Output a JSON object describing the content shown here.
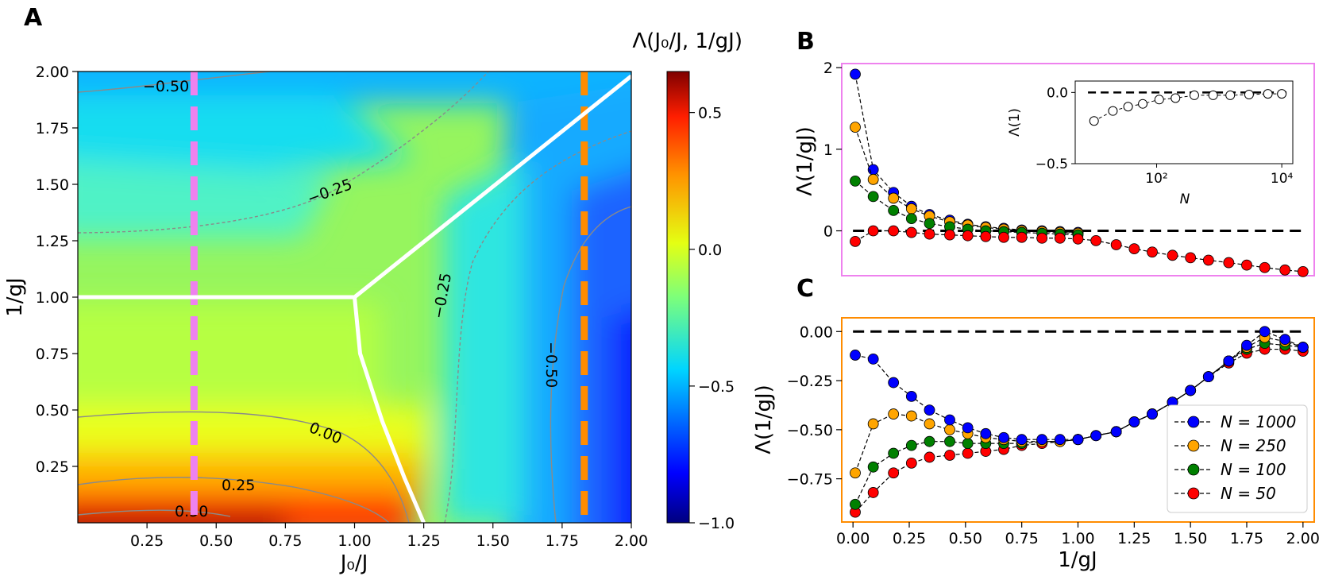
{
  "panels": {
    "a": {
      "letter": "A"
    },
    "b": {
      "letter": "B"
    },
    "c": {
      "letter": "C"
    }
  },
  "colors": {
    "pink": "#ee82ee",
    "orange": "#ff8c00",
    "blue": "#0000ff",
    "orange_marker": "#ffa500",
    "green": "#008000",
    "red": "#ff0000"
  },
  "chart_data": [
    {
      "id": "A",
      "type": "heatmap",
      "title": "Λ(J₀/J, 1/gJ)",
      "xlabel": "J₀/J",
      "ylabel": "1/gJ",
      "xlim": [
        0,
        2.0
      ],
      "ylim": [
        0,
        2.0
      ],
      "xticks": [
        "0.25",
        "0.50",
        "0.75",
        "1.00",
        "1.25",
        "1.50",
        "1.75",
        "2.00"
      ],
      "yticks": [
        "0.25",
        "0.50",
        "0.75",
        "1.00",
        "1.25",
        "1.50",
        "1.75",
        "2.00"
      ],
      "colorbar": {
        "range": [
          -1.0,
          0.65
        ],
        "ticks": [
          "0.5",
          "0.0",
          "−0.5",
          "−1.0"
        ],
        "colormap": "jet"
      },
      "contour_labels": [
        "−0.50",
        "−0.25",
        "−0.25",
        "0.00",
        "0.25",
        "0.50",
        "−0.50"
      ],
      "vertical_lines": [
        {
          "x": 0.42,
          "color": "#ee82ee"
        },
        {
          "x": 1.83,
          "color": "#ff8c00"
        }
      ],
      "phase_boundaries": [
        {
          "points": [
            [
              0.0,
              1.0
            ],
            [
              1.0,
              1.0
            ]
          ]
        },
        {
          "points": [
            [
              1.0,
              1.0
            ],
            [
              2.0,
              1.98
            ]
          ]
        },
        {
          "points": [
            [
              1.0,
              1.0
            ],
            [
              1.02,
              0.75
            ],
            [
              1.1,
              0.45
            ],
            [
              1.18,
              0.2
            ],
            [
              1.25,
              0.0
            ]
          ]
        }
      ]
    },
    {
      "id": "B",
      "type": "line",
      "xlabel": "",
      "ylabel": "Λ(1/gJ)",
      "xlim": [
        -0.05,
        2.05
      ],
      "ylim": [
        -0.55,
        2.05
      ],
      "yticks": [
        "0",
        "1",
        "2"
      ],
      "reference_line_y": 0,
      "series": [
        {
          "name": "N = 1000",
          "color": "#0000ff",
          "x": [
            0.01,
            0.09,
            0.18,
            0.26,
            0.34,
            0.43,
            0.51,
            0.59,
            0.67,
            0.75,
            0.84,
            0.92,
            1.0
          ],
          "values": [
            1.92,
            0.75,
            0.47,
            0.3,
            0.2,
            0.13,
            0.08,
            0.05,
            0.03,
            0.01,
            0.0,
            -0.01,
            -0.02
          ]
        },
        {
          "name": "N = 250",
          "color": "#ffa500",
          "x": [
            0.01,
            0.09,
            0.18,
            0.26,
            0.34,
            0.43,
            0.51,
            0.59,
            0.67,
            0.75,
            0.84,
            0.92,
            1.0
          ],
          "values": [
            1.27,
            0.63,
            0.4,
            0.27,
            0.18,
            0.11,
            0.07,
            0.04,
            0.02,
            0.0,
            -0.01,
            -0.02,
            -0.03
          ]
        },
        {
          "name": "N = 100",
          "color": "#008000",
          "x": [
            0.01,
            0.09,
            0.18,
            0.26,
            0.34,
            0.43,
            0.51,
            0.59,
            0.67,
            0.75,
            0.84,
            0.92,
            1.0
          ],
          "values": [
            0.61,
            0.42,
            0.25,
            0.15,
            0.09,
            0.05,
            0.02,
            0.0,
            -0.01,
            -0.02,
            -0.03,
            -0.04,
            -0.05
          ]
        },
        {
          "name": "N = 50",
          "color": "#ff0000",
          "x": [
            0.01,
            0.09,
            0.18,
            0.26,
            0.34,
            0.43,
            0.51,
            0.59,
            0.67,
            0.75,
            0.84,
            0.92,
            1.0,
            1.08,
            1.17,
            1.25,
            1.33,
            1.42,
            1.5,
            1.58,
            1.67,
            1.75,
            1.83,
            1.92,
            2.0
          ],
          "values": [
            -0.13,
            0.0,
            0.0,
            -0.02,
            -0.04,
            -0.05,
            -0.06,
            -0.07,
            -0.08,
            -0.08,
            -0.09,
            -0.09,
            -0.1,
            -0.12,
            -0.17,
            -0.22,
            -0.26,
            -0.3,
            -0.33,
            -0.36,
            -0.39,
            -0.42,
            -0.45,
            -0.48,
            -0.5
          ]
        }
      ],
      "inset": {
        "ylabel": "Λ(1)",
        "xlabel": "N",
        "xscale": "log",
        "xlim": [
          5,
          15000
        ],
        "ylim": [
          -0.5,
          0.08
        ],
        "yticks": [
          "0.0",
          "−0.5"
        ],
        "xtick_labels": [
          "10²",
          "10⁴"
        ],
        "reference_line_y": 0,
        "points": {
          "x": [
            10,
            20,
            35,
            60,
            110,
            200,
            400,
            800,
            1500,
            3000,
            6000,
            10000
          ],
          "values": [
            -0.2,
            -0.13,
            -0.1,
            -0.08,
            -0.05,
            -0.04,
            -0.02,
            -0.02,
            -0.02,
            -0.015,
            -0.01,
            -0.01
          ]
        }
      }
    },
    {
      "id": "C",
      "type": "line",
      "xlabel": "1/gJ",
      "ylabel": "Λ(1/gJ)",
      "xlim": [
        -0.05,
        2.05
      ],
      "ylim": [
        -0.97,
        0.07
      ],
      "xticks": [
        "0.00",
        "0.25",
        "0.50",
        "0.75",
        "1.00",
        "1.25",
        "1.50",
        "1.75",
        "2.00"
      ],
      "yticks": [
        "0.00",
        "−0.25",
        "−0.50",
        "−0.75"
      ],
      "reference_line_y": 0,
      "legend_position": "lower right",
      "x": [
        0.01,
        0.09,
        0.18,
        0.26,
        0.34,
        0.43,
        0.51,
        0.59,
        0.67,
        0.75,
        0.84,
        0.92,
        1.0,
        1.08,
        1.17,
        1.25,
        1.33,
        1.42,
        1.5,
        1.58,
        1.67,
        1.75,
        1.83,
        1.92,
        2.0
      ],
      "series": [
        {
          "name": "N = 1000",
          "color": "#0000ff",
          "values": [
            -0.12,
            -0.14,
            -0.26,
            -0.33,
            -0.4,
            -0.45,
            -0.49,
            -0.52,
            -0.54,
            -0.55,
            -0.55,
            -0.55,
            -0.55,
            -0.53,
            -0.51,
            -0.46,
            -0.42,
            -0.36,
            -0.3,
            -0.23,
            -0.15,
            -0.07,
            0.0,
            -0.04,
            -0.08
          ]
        },
        {
          "name": "N = 250",
          "color": "#ffa500",
          "values": [
            -0.72,
            -0.47,
            -0.42,
            -0.43,
            -0.47,
            -0.5,
            -0.52,
            -0.54,
            -0.55,
            -0.56,
            -0.56,
            -0.56,
            -0.55,
            -0.53,
            -0.51,
            -0.46,
            -0.42,
            -0.36,
            -0.3,
            -0.23,
            -0.15,
            -0.08,
            -0.03,
            -0.05,
            -0.08
          ]
        },
        {
          "name": "N = 100",
          "color": "#008000",
          "values": [
            -0.88,
            -0.69,
            -0.62,
            -0.58,
            -0.56,
            -0.56,
            -0.57,
            -0.57,
            -0.57,
            -0.57,
            -0.56,
            -0.56,
            -0.55,
            -0.53,
            -0.51,
            -0.46,
            -0.42,
            -0.36,
            -0.3,
            -0.23,
            -0.15,
            -0.09,
            -0.06,
            -0.07,
            -0.08
          ]
        },
        {
          "name": "N = 50",
          "color": "#ff0000",
          "values": [
            -0.92,
            -0.82,
            -0.72,
            -0.67,
            -0.64,
            -0.63,
            -0.62,
            -0.61,
            -0.6,
            -0.58,
            -0.57,
            -0.56,
            -0.55,
            -0.53,
            -0.51,
            -0.46,
            -0.42,
            -0.36,
            -0.3,
            -0.23,
            -0.16,
            -0.11,
            -0.09,
            -0.09,
            -0.1
          ]
        }
      ]
    }
  ]
}
